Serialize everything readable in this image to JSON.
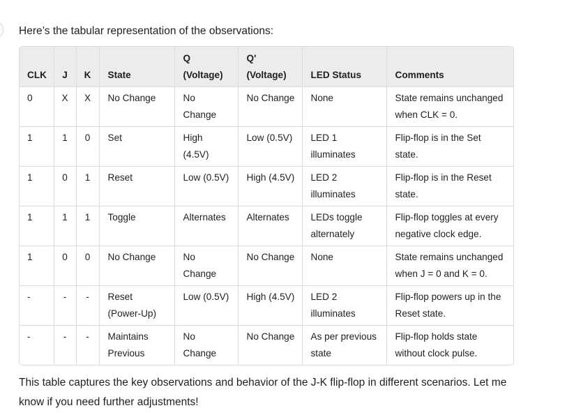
{
  "intro_text": "Here’s the tabular representation of the observations:",
  "table": {
    "headers": {
      "clk": "CLK",
      "j": "J",
      "k": "K",
      "state": "State",
      "q_line1": "Q",
      "q_line2": "(Voltage)",
      "qbar_line1": "Q'",
      "qbar_line2": "(Voltage)",
      "led": "LED Status",
      "comments": "Comments"
    },
    "rows": [
      {
        "clk": "0",
        "j": "X",
        "k": "X",
        "state": "No Change",
        "q": "No Change",
        "qbar": "No Change",
        "led": "None",
        "comments": "State remains unchanged when CLK = 0."
      },
      {
        "clk": "1",
        "j": "1",
        "k": "0",
        "state": "Set",
        "q": "High (4.5V)",
        "qbar": "Low (0.5V)",
        "led": "LED 1 illuminates",
        "comments": "Flip-flop is in the Set state."
      },
      {
        "clk": "1",
        "j": "0",
        "k": "1",
        "state": "Reset",
        "q": "Low (0.5V)",
        "qbar": "High (4.5V)",
        "led": "LED 2 illuminates",
        "comments": "Flip-flop is in the Reset state."
      },
      {
        "clk": "1",
        "j": "1",
        "k": "1",
        "state": "Toggle",
        "q": "Alternates",
        "qbar": "Alternates",
        "led": "LEDs toggle alternately",
        "comments": "Flip-flop toggles at every negative clock edge."
      },
      {
        "clk": "1",
        "j": "0",
        "k": "0",
        "state": "No Change",
        "q": "No Change",
        "qbar": "No Change",
        "led": "None",
        "comments": "State remains unchanged when J = 0 and K = 0."
      },
      {
        "clk": "-",
        "j": "-",
        "k": "-",
        "state": "Reset (Power-Up)",
        "q": "Low (0.5V)",
        "qbar": "High (4.5V)",
        "led": "LED 2 illuminates",
        "comments": "Flip-flop powers up in the Reset state."
      },
      {
        "clk": "-",
        "j": "-",
        "k": "-",
        "state": "Maintains Previous",
        "q": "No Change",
        "qbar": "No Change",
        "led": "As per previous state",
        "comments": "Flip-flop holds state without clock pulse."
      }
    ]
  },
  "outro_text": "This table captures the key observations and behavior of the J-K flip-flop in different scenarios. Let me know if you need further adjustments!"
}
